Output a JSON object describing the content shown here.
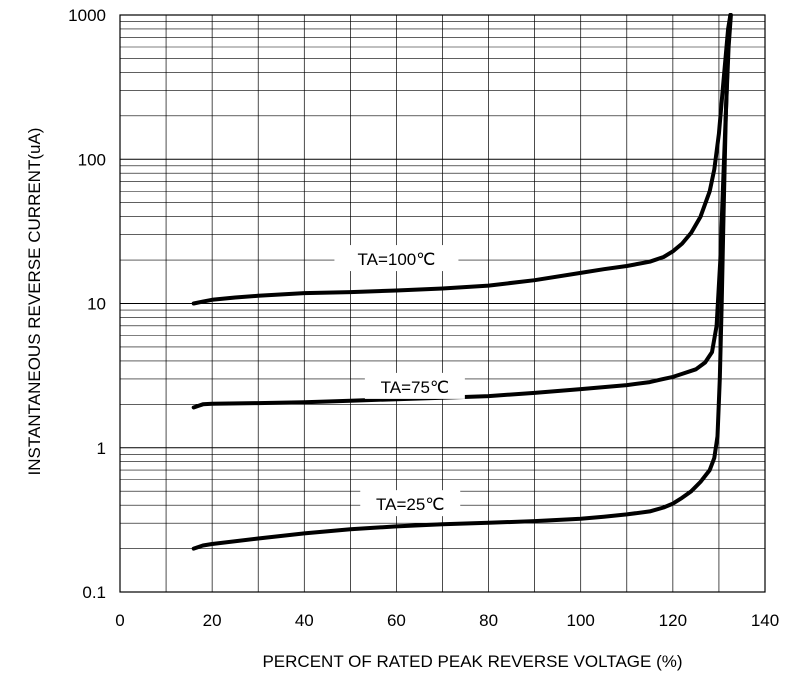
{
  "chart_data": {
    "type": "line",
    "title": "",
    "xlabel": "PERCENT OF RATED PEAK REVERSE VOLTAGE (%)",
    "ylabel": "INSTANTANEOUS REVERSE CURRENT(uA)",
    "xlim": [
      0,
      140
    ],
    "ylim": [
      0.1,
      1000
    ],
    "yscale": "log",
    "grid": true,
    "x_ticks": [
      0,
      20,
      40,
      60,
      80,
      100,
      120,
      140
    ],
    "x_tick_labels": [
      "0",
      "20",
      "40",
      "60",
      "80",
      "100",
      "120",
      "140"
    ],
    "y_ticks": [
      0.1,
      1,
      10,
      100,
      1000
    ],
    "y_tick_labels": [
      "0.1",
      "1",
      "10",
      "100",
      "1000"
    ],
    "series": [
      {
        "name": "TA=100℃",
        "x": [
          16,
          18,
          20,
          25,
          30,
          40,
          50,
          60,
          70,
          80,
          90,
          100,
          105,
          110,
          115,
          118,
          120,
          122,
          124,
          126,
          128,
          129,
          130,
          131,
          132,
          132.5
        ],
        "y": [
          10,
          10.3,
          10.6,
          11,
          11.3,
          11.8,
          12,
          12.3,
          12.7,
          13.3,
          14.5,
          16.3,
          17.3,
          18.2,
          19.5,
          21,
          23,
          26,
          31,
          40,
          60,
          85,
          150,
          350,
          800,
          1000
        ]
      },
      {
        "name": "TA=75℃",
        "x": [
          16,
          17,
          18,
          20,
          30,
          40,
          50,
          60,
          70,
          80,
          90,
          100,
          110,
          115,
          118,
          120,
          122,
          125,
          127,
          128.5,
          129.5,
          130.3,
          131,
          131.6,
          132.1,
          132.6
        ],
        "y": [
          1.9,
          1.95,
          2.0,
          2.02,
          2.04,
          2.07,
          2.12,
          2.17,
          2.22,
          2.28,
          2.4,
          2.55,
          2.72,
          2.85,
          3.0,
          3.1,
          3.25,
          3.5,
          3.9,
          4.6,
          7,
          20,
          80,
          250,
          600,
          1000
        ]
      },
      {
        "name": "TA=25℃",
        "x": [
          16,
          18,
          20,
          30,
          40,
          50,
          60,
          70,
          80,
          90,
          100,
          105,
          110,
          115,
          118,
          120,
          122,
          124,
          126,
          128,
          129,
          129.7,
          130.2,
          130.6,
          131,
          131.5,
          132,
          132.5
        ],
        "y": [
          0.2,
          0.21,
          0.215,
          0.235,
          0.255,
          0.272,
          0.285,
          0.295,
          0.302,
          0.31,
          0.322,
          0.332,
          0.345,
          0.362,
          0.385,
          0.41,
          0.45,
          0.5,
          0.58,
          0.7,
          0.85,
          1.2,
          3,
          10,
          40,
          200,
          600,
          1000
        ]
      }
    ],
    "annotations": [
      "TA=100℃",
      "TA=75℃",
      "TA=25℃"
    ]
  }
}
